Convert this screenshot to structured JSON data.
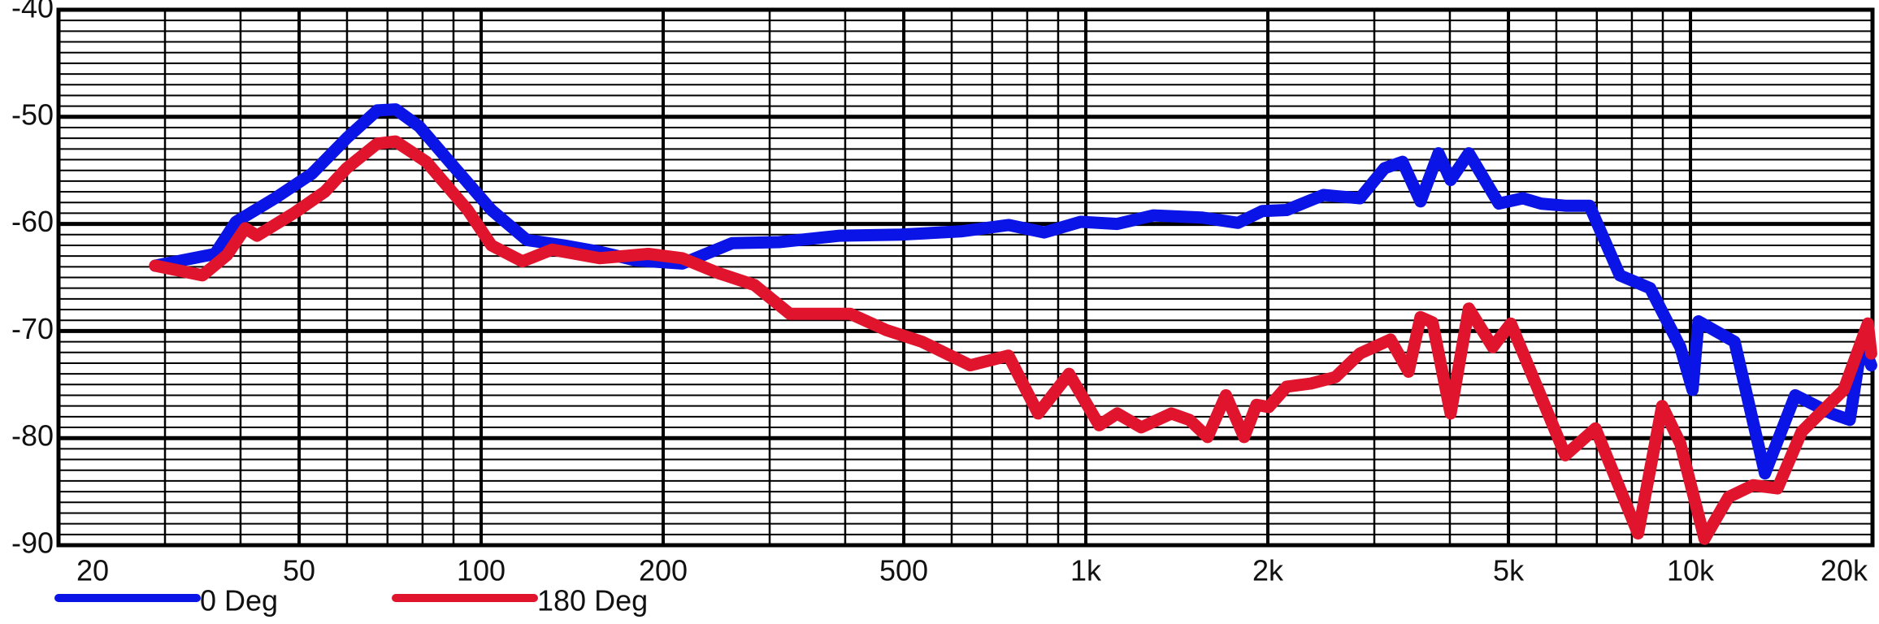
{
  "chart_data": {
    "type": "line",
    "xscale": "log",
    "grid": true,
    "legend": "bottom-left",
    "xlim": [
      20,
      20000
    ],
    "ylim": [
      -90,
      -40
    ],
    "xticks": [
      20,
      50,
      100,
      200,
      500,
      {
        "value": 1000,
        "label": "1k"
      },
      {
        "value": 2000,
        "label": "2k"
      },
      {
        "value": 5000,
        "label": "5k"
      },
      {
        "value": 10000,
        "label": "10k"
      },
      {
        "value": 20000,
        "label": "20k"
      }
    ],
    "xminor": [
      30,
      40,
      60,
      70,
      80,
      90,
      300,
      400,
      600,
      700,
      800,
      900,
      3000,
      4000,
      6000,
      7000,
      8000,
      9000
    ],
    "yticks": [
      -40,
      -50,
      -60,
      -70,
      -80,
      -90
    ],
    "yminor": [
      -41,
      -42,
      -43,
      -44,
      -45,
      -46,
      -47,
      -48,
      -49,
      -51,
      -52,
      -53,
      -54,
      -55,
      -56,
      -57,
      -58,
      -59,
      -61,
      -62,
      -63,
      -64,
      -65,
      -66,
      -67,
      -68,
      -69,
      -71,
      -72,
      -73,
      -74,
      -75,
      -76,
      -77,
      -78,
      -79,
      -81,
      -82,
      -83,
      -84,
      -85,
      -86,
      -87,
      -88,
      -89
    ],
    "series": [
      {
        "name": "0 Deg",
        "color": "#0a14e6",
        "x": [
          28.9,
          36.3,
          39.3,
          45.6,
          52.5,
          59.9,
          67.3,
          72.2,
          79,
          90.6,
          104,
          119,
          137,
          157,
          180,
          215,
          260,
          311,
          392,
          494,
          621,
          745,
          854,
          981,
          1127,
          1294,
          1554,
          1785,
          1958,
          2148,
          2472,
          2840,
          3118,
          3340,
          3577,
          3831,
          4012,
          4299,
          4819,
          5282,
          5657,
          6208,
          6807,
          7642,
          8575,
          9621,
          10080,
          10310,
          11830,
          13280,
          14900,
          17110,
          18340,
          19210,
          19900
        ],
        "values": [
          -63.9,
          -62.8,
          -59.8,
          -57.6,
          -55.3,
          -52,
          -49.4,
          -49.3,
          -50.9,
          -54.8,
          -58.7,
          -61.5,
          -62,
          -62.6,
          -63.4,
          -63.7,
          -61.8,
          -61.7,
          -61.1,
          -61,
          -60.7,
          -60.1,
          -60.8,
          -59.8,
          -60,
          -59.2,
          -59.4,
          -59.9,
          -58.8,
          -58.7,
          -57.3,
          -57.6,
          -54.8,
          -54.2,
          -57.9,
          -53.4,
          -55.9,
          -53.4,
          -58.1,
          -57.6,
          -58.1,
          -58.3,
          -58.3,
          -64.8,
          -66,
          -71.5,
          -75.5,
          -69.1,
          -71,
          -83.3,
          -76,
          -77.7,
          -78.3,
          -71,
          -73.2
        ]
      },
      {
        "name": "180 Deg",
        "color": "#e0142c",
        "x": [
          28.9,
          34.6,
          38,
          40.7,
          42.6,
          49,
          55.1,
          59.9,
          67.3,
          72.2,
          81.2,
          95,
          104,
          117,
          131,
          157,
          189,
          215,
          247,
          283,
          324,
          408,
          467,
          536,
          644,
          745,
          834,
          938,
          1052,
          1127,
          1235,
          1385,
          1484,
          1590,
          1705,
          1827,
          1915,
          2006,
          2148,
          2357,
          2587,
          2840,
          3190,
          3417,
          3577,
          3744,
          4012,
          4299,
          4709,
          5046,
          6208,
          6964,
          8190,
          8977,
          9621,
          10550,
          11560,
          12690,
          13930,
          15270,
          17920,
          19650,
          19900
        ],
        "values": [
          -63.9,
          -64.8,
          -62.9,
          -60.4,
          -61.1,
          -59,
          -57,
          -54.8,
          -52.5,
          -52.3,
          -54.2,
          -58.7,
          -62,
          -63.5,
          -62.4,
          -63.2,
          -62.8,
          -63.2,
          -64.6,
          -65.7,
          -68.4,
          -68.4,
          -69.9,
          -71,
          -73.2,
          -72.3,
          -77.7,
          -74,
          -78.8,
          -77.7,
          -79,
          -77.7,
          -78.3,
          -79.9,
          -76,
          -79.9,
          -76.9,
          -77.1,
          -75.2,
          -74.9,
          -74.3,
          -72.1,
          -70.8,
          -73.8,
          -68.7,
          -69.2,
          -77.7,
          -67.9,
          -71.5,
          -69.3,
          -81.6,
          -79.1,
          -88.9,
          -77,
          -80.5,
          -89.4,
          -85.5,
          -84.4,
          -84.7,
          -79.4,
          -75.5,
          -69.3,
          -72.1
        ]
      }
    ]
  }
}
